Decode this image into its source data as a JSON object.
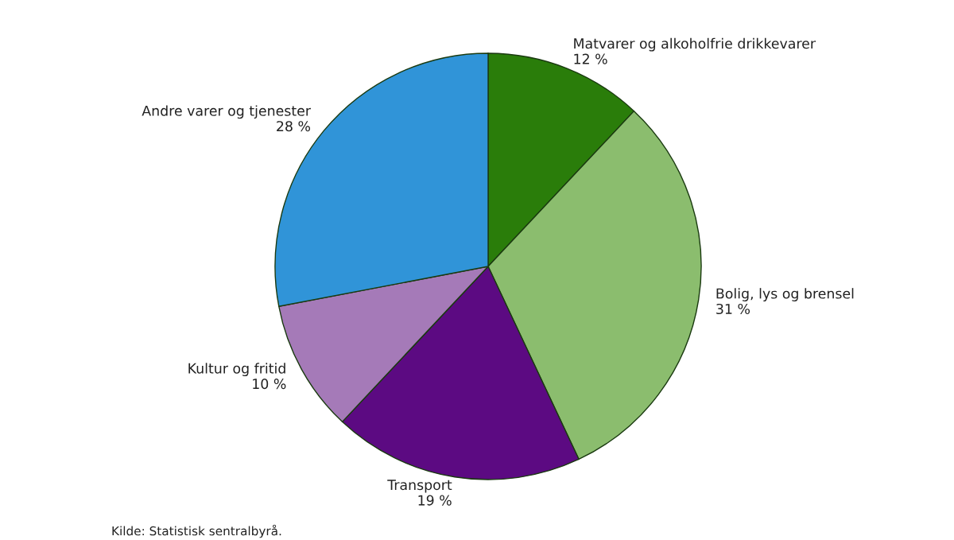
{
  "chart_data": {
    "type": "pie",
    "categories": [
      "Matvarer og alkoholfrie drikkevarer",
      "Bolig, lys og brensel",
      "Transport",
      "Kultur og fritid",
      "Andre varer og tjenester"
    ],
    "values": [
      12,
      31,
      19,
      10,
      28
    ],
    "value_labels": [
      "12 %",
      "31 %",
      "19 %",
      "10 %",
      "28 %"
    ],
    "colors": [
      "#2a7d0a",
      "#8bbd6e",
      "#5c0a82",
      "#a57ab8",
      "#3094d8"
    ],
    "annotations": [
      "Kilde: Statistisk sentralbyrå."
    ],
    "legend": false
  }
}
